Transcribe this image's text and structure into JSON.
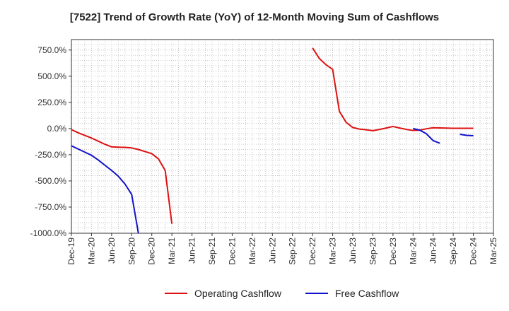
{
  "chart_data": {
    "type": "line",
    "title": "[7522]  Trend of Growth Rate (YoY) of 12-Month Moving Sum of Cashflows",
    "xlabel": "",
    "ylabel": "",
    "ylim": [
      -1000,
      850
    ],
    "yticks": [
      750,
      500,
      250,
      0,
      -250,
      -500,
      -750,
      -1000
    ],
    "ytick_labels": [
      "750.0%",
      "500.0%",
      "250.0%",
      "0.0%",
      "-250.0%",
      "-500.0%",
      "-750.0%",
      "-1000.0%"
    ],
    "xlim": [
      "Dec-19",
      "Mar-25"
    ],
    "xtick_labels": [
      "Dec-19",
      "Mar-20",
      "Jun-20",
      "Sep-20",
      "Dec-20",
      "Mar-21",
      "Jun-21",
      "Sep-21",
      "Dec-21",
      "Mar-22",
      "Jun-22",
      "Sep-22",
      "Dec-22",
      "Mar-23",
      "Jun-23",
      "Sep-23",
      "Dec-23",
      "Mar-24",
      "Jun-24",
      "Sep-24",
      "Dec-24",
      "Mar-25"
    ],
    "grid": true,
    "legend_position": "bottom",
    "series": [
      {
        "name": "Operating Cashflow",
        "color": "#dd1111",
        "points": [
          {
            "x": "Dec-19",
            "y": -10
          },
          {
            "x": "Jan-20",
            "y": -40
          },
          {
            "x": "Feb-20",
            "y": -65
          },
          {
            "x": "Mar-20",
            "y": -90
          },
          {
            "x": "Apr-20",
            "y": -120
          },
          {
            "x": "May-20",
            "y": -150
          },
          {
            "x": "Jun-20",
            "y": -175
          },
          {
            "x": "Jul-20",
            "y": -178
          },
          {
            "x": "Aug-20",
            "y": -180
          },
          {
            "x": "Sep-20",
            "y": -185
          },
          {
            "x": "Oct-20",
            "y": -200
          },
          {
            "x": "Nov-20",
            "y": -220
          },
          {
            "x": "Dec-20",
            "y": -240
          },
          {
            "x": "Jan-21",
            "y": -290
          },
          {
            "x": "Feb-21",
            "y": -400
          },
          {
            "x": "Mar-21",
            "y": -910
          },
          {
            "x": "Nov-22",
            "y": null
          },
          {
            "x": "Dec-22",
            "y": 770
          },
          {
            "x": "Jan-23",
            "y": 670
          },
          {
            "x": "Feb-23",
            "y": 610
          },
          {
            "x": "Mar-23",
            "y": 565
          },
          {
            "x": "Apr-23",
            "y": 165
          },
          {
            "x": "May-23",
            "y": 60
          },
          {
            "x": "Jun-23",
            "y": 10
          },
          {
            "x": "Jul-23",
            "y": -5
          },
          {
            "x": "Aug-23",
            "y": -12
          },
          {
            "x": "Sep-23",
            "y": -20
          },
          {
            "x": "Oct-23",
            "y": -8
          },
          {
            "x": "Nov-23",
            "y": 5
          },
          {
            "x": "Dec-23",
            "y": 20
          },
          {
            "x": "Jan-24",
            "y": 5
          },
          {
            "x": "Feb-24",
            "y": -8
          },
          {
            "x": "Mar-24",
            "y": -18
          },
          {
            "x": "Apr-24",
            "y": -15
          },
          {
            "x": "May-24",
            "y": -2
          },
          {
            "x": "Jun-24",
            "y": 8
          },
          {
            "x": "Jul-24",
            "y": 6
          },
          {
            "x": "Aug-24",
            "y": 4
          },
          {
            "x": "Sep-24",
            "y": 3
          },
          {
            "x": "Oct-24",
            "y": 3
          },
          {
            "x": "Nov-24",
            "y": 3
          },
          {
            "x": "Dec-24",
            "y": 3
          }
        ]
      },
      {
        "name": "Free Cashflow",
        "color": "#1111cc",
        "points": [
          {
            "x": "Dec-19",
            "y": -165
          },
          {
            "x": "Jan-20",
            "y": -195
          },
          {
            "x": "Feb-20",
            "y": -225
          },
          {
            "x": "Mar-20",
            "y": -255
          },
          {
            "x": "Apr-20",
            "y": -300
          },
          {
            "x": "May-20",
            "y": -350
          },
          {
            "x": "Jun-20",
            "y": -400
          },
          {
            "x": "Jul-20",
            "y": -455
          },
          {
            "x": "Aug-20",
            "y": -530
          },
          {
            "x": "Sep-20",
            "y": -630
          },
          {
            "x": "Oct-20",
            "y": -1000
          },
          {
            "x": "Feb-24",
            "y": null
          },
          {
            "x": "Mar-24",
            "y": 0
          },
          {
            "x": "Apr-24",
            "y": -15
          },
          {
            "x": "May-24",
            "y": -50
          },
          {
            "x": "Jun-24",
            "y": -115
          },
          {
            "x": "Jul-24",
            "y": -140
          },
          {
            "x": "Aug-24",
            "y": null
          },
          {
            "x": "Oct-24",
            "y": -55
          },
          {
            "x": "Nov-24",
            "y": -65
          },
          {
            "x": "Dec-24",
            "y": -68
          }
        ]
      }
    ]
  }
}
